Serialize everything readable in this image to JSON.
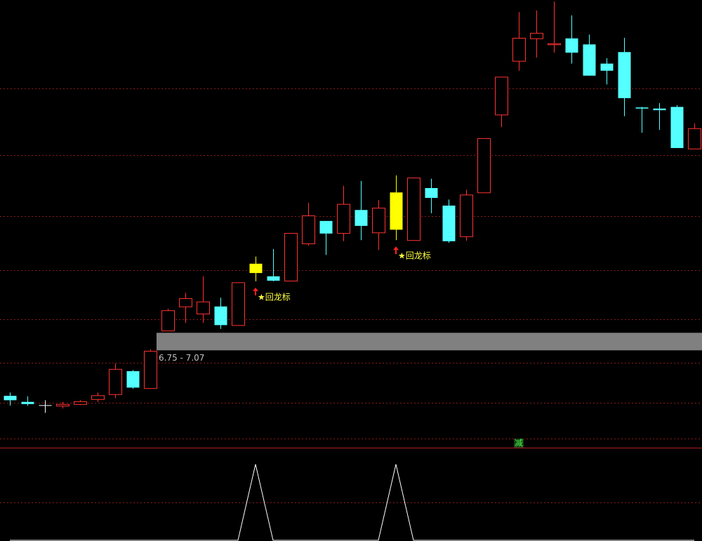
{
  "chart_data": [
    {
      "type": "candlestick",
      "open": [
        5.92,
        5.81,
        5.75,
        5.74,
        5.77,
        5.86,
        5.95,
        6.37,
        6.06,
        7.11,
        7.55,
        7.42,
        7.55,
        7.21,
        8.33,
        8.1,
        8.02,
        8.7,
        9.11,
        8.89,
        9.31,
        8.9,
        9.63,
        8.76,
        9.71,
        9.39,
        8.83,
        9.63,
        11.05,
        12.03,
        12.44,
        12.33,
        12.44,
        12.33,
        11.98,
        12.19,
        11.18,
        11.16,
        11.19,
        10.43
      ],
      "high": [
        5.98,
        5.91,
        5.84,
        5.81,
        5.84,
        5.98,
        6.51,
        6.39,
        6.77,
        7.51,
        7.8,
        8.1,
        7.71,
        7.99,
        8.46,
        8.6,
        8.89,
        9.44,
        9.11,
        9.75,
        9.84,
        9.49,
        9.94,
        9.9,
        9.88,
        9.5,
        9.68,
        10.62,
        11.74,
        12.92,
        12.95,
        13.11,
        12.86,
        12.51,
        12.08,
        12.45,
        11.19,
        11.26,
        11.22,
        10.89
      ],
      "low": [
        5.74,
        5.74,
        5.61,
        5.69,
        5.75,
        5.81,
        5.88,
        6.05,
        6.06,
        7.11,
        7.25,
        7.25,
        7.14,
        7.21,
        8.01,
        8.01,
        8.02,
        8.66,
        8.49,
        8.74,
        8.76,
        8.58,
        8.76,
        8.76,
        9.25,
        8.71,
        8.75,
        9.63,
        10.82,
        11.85,
        12.09,
        12.18,
        11.98,
        11.76,
        11.6,
        11.02,
        10.72,
        10.77,
        10.44,
        10.43
      ],
      "close": [
        5.84,
        5.77,
        5.75,
        5.77,
        5.82,
        5.93,
        6.41,
        6.07,
        6.74,
        7.48,
        7.7,
        7.64,
        7.21,
        7.99,
        8.16,
        8.02,
        8.89,
        9.21,
        8.88,
        9.42,
        9.02,
        9.35,
        8.95,
        9.9,
        9.53,
        8.74,
        9.59,
        10.62,
        11.74,
        12.45,
        12.54,
        12.35,
        12.18,
        11.76,
        11.85,
        11.35,
        11.16,
        11.13,
        10.44,
        10.8
      ],
      "up_color": "#ff3232",
      "down_color": "#54ffff",
      "flat_color": "#ffffff",
      "highlight_color": "#ffff00",
      "ylim": [
        5.0,
        13.14
      ],
      "grid_levels": [
        11.53,
        10.31,
        9.2,
        8.21,
        7.32,
        6.52,
        5.79,
        5.14
      ],
      "zone": {
        "low": 6.75,
        "high": 7.07,
        "label": "6.75 - 7.07",
        "color": "#808080"
      },
      "signals": [
        {
          "at": 14,
          "label": "★回龙标"
        },
        {
          "at": 22,
          "label": "★回龙标"
        }
      ],
      "marker": {
        "label": "减",
        "at": 29
      }
    },
    {
      "type": "line",
      "values": [
        0,
        0,
        0,
        0,
        0,
        0,
        0,
        0,
        0,
        0,
        0,
        0,
        0,
        0,
        1,
        0,
        0,
        0,
        0,
        0,
        0,
        0,
        1,
        0,
        0,
        0,
        0,
        0,
        0,
        0,
        0,
        0,
        0,
        0,
        0,
        0,
        0,
        0,
        0,
        0
      ],
      "color": "#ffffff",
      "ylim": [
        0,
        1.2
      ],
      "grid_levels": [
        0.5
      ]
    }
  ]
}
